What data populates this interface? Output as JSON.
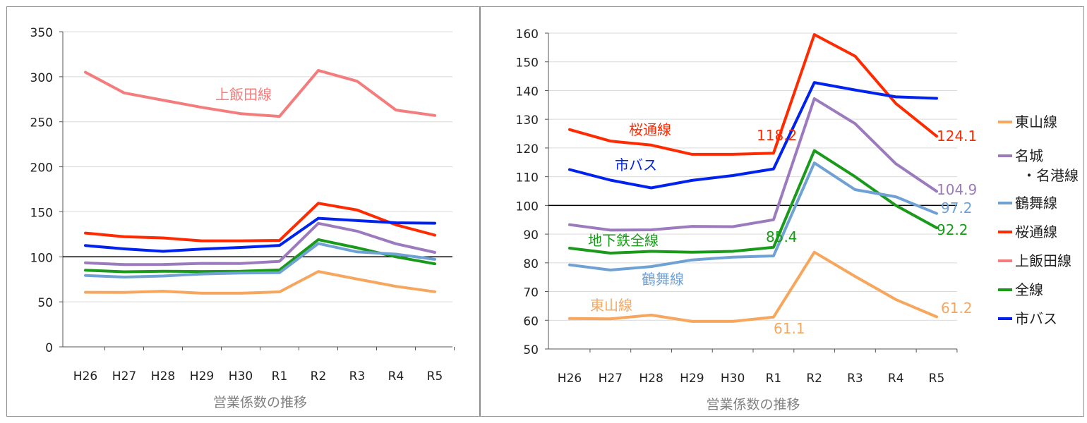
{
  "chart_data": [
    {
      "type": "line",
      "xlabel": "営業係数の推移",
      "ylabel": "",
      "categories": [
        "H26",
        "H27",
        "H28",
        "H29",
        "H30",
        "R1",
        "R2",
        "R3",
        "R4",
        "R5"
      ],
      "ylim": [
        0,
        350
      ],
      "yticks": [
        0,
        50,
        100,
        150,
        200,
        250,
        300,
        350
      ],
      "grid": true,
      "reference_line": 100,
      "legend": "none",
      "series": [
        {
          "name": "上飯田線",
          "color": "#f47c7c",
          "values": [
            305,
            282,
            274,
            266,
            259,
            256,
            307,
            295,
            263,
            257
          ]
        },
        {
          "name": "桜通線",
          "color": "#ff2a00",
          "values": [
            126.4,
            122.4,
            121.0,
            117.8,
            117.8,
            118.2,
            159.5,
            152.0,
            135.5,
            124.1
          ]
        },
        {
          "name": "市バス",
          "color": "#0022ee",
          "values": [
            112.5,
            108.8,
            106.1,
            108.7,
            110.4,
            112.7,
            142.8,
            140.2,
            137.8,
            137.3
          ]
        },
        {
          "name": "名城・名港線",
          "color": "#9b7bbe",
          "values": [
            93.3,
            91.4,
            91.5,
            92.7,
            92.6,
            95.0,
            137.2,
            128.5,
            114.5,
            104.9
          ]
        },
        {
          "name": "全線",
          "color": "#1a9a1a",
          "values": [
            85.1,
            83.4,
            84.0,
            83.7,
            84.0,
            85.4,
            119.1,
            110.0,
            100.0,
            92.2
          ]
        },
        {
          "name": "鶴舞線",
          "color": "#6fa1d4",
          "values": [
            79.3,
            77.5,
            78.7,
            81.0,
            82.0,
            82.4,
            114.8,
            105.5,
            103.0,
            97.2
          ]
        },
        {
          "name": "東山線",
          "color": "#f7a65e",
          "values": [
            60.6,
            60.5,
            61.8,
            59.6,
            59.6,
            61.1,
            83.7,
            75.3,
            67.2,
            61.2
          ]
        }
      ],
      "annotations": [
        {
          "text": "上飯田線",
          "series": "上飯田線"
        }
      ]
    },
    {
      "type": "line",
      "xlabel": "営業係数の推移",
      "ylabel": "",
      "categories": [
        "H26",
        "H27",
        "H28",
        "H29",
        "H30",
        "R1",
        "R2",
        "R3",
        "R4",
        "R5"
      ],
      "ylim": [
        50,
        160
      ],
      "yticks": [
        50,
        60,
        70,
        80,
        90,
        100,
        110,
        120,
        130,
        140,
        150,
        160
      ],
      "grid": true,
      "reference_line": 100,
      "legend": "right",
      "legend_entries": [
        {
          "label": "東山線",
          "color": "#f7a65e"
        },
        {
          "label": "名城",
          "label2": "・名港線",
          "color": "#9b7bbe"
        },
        {
          "label": "鶴舞線",
          "color": "#6fa1d4"
        },
        {
          "label": "桜通線",
          "color": "#ff2a00"
        },
        {
          "label": "上飯田線",
          "color": "#f47c7c"
        },
        {
          "label": "全線",
          "color": "#1a9a1a"
        },
        {
          "label": "市バス",
          "color": "#0022ee"
        }
      ],
      "series": [
        {
          "name": "桜通線",
          "color": "#ff2a00",
          "values": [
            126.4,
            122.4,
            121.0,
            117.8,
            117.8,
            118.2,
            159.5,
            152.0,
            135.5,
            124.1
          ]
        },
        {
          "name": "市バス",
          "color": "#0022ee",
          "values": [
            112.5,
            108.8,
            106.1,
            108.7,
            110.4,
            112.7,
            142.8,
            140.2,
            137.8,
            137.3
          ]
        },
        {
          "name": "名城・名港線",
          "color": "#9b7bbe",
          "values": [
            93.3,
            91.4,
            91.5,
            92.7,
            92.6,
            95.0,
            137.2,
            128.5,
            114.5,
            104.9
          ]
        },
        {
          "name": "全線",
          "color": "#1a9a1a",
          "values": [
            85.1,
            83.4,
            84.0,
            83.7,
            84.0,
            85.4,
            119.1,
            110.0,
            100.0,
            92.2
          ]
        },
        {
          "name": "鶴舞線",
          "color": "#6fa1d4",
          "values": [
            79.3,
            77.5,
            78.7,
            81.0,
            82.0,
            82.4,
            114.8,
            105.5,
            103.0,
            97.2
          ]
        },
        {
          "name": "東山線",
          "color": "#f7a65e",
          "values": [
            60.6,
            60.5,
            61.8,
            59.6,
            59.6,
            61.1,
            83.7,
            75.3,
            67.2,
            61.2
          ]
        }
      ],
      "annotations": [
        {
          "text": "桜通線",
          "series": "桜通線"
        },
        {
          "text": "市バス",
          "series": "市バス"
        },
        {
          "text": "地下鉄全線",
          "series": "全線"
        },
        {
          "text": "鶴舞線",
          "series": "鶴舞線"
        },
        {
          "text": "東山線",
          "series": "東山線"
        },
        {
          "text": "118.2",
          "series": "桜通線"
        },
        {
          "text": "85.4",
          "series": "全線"
        },
        {
          "text": "61.1",
          "series": "東山線"
        },
        {
          "text": "124.1",
          "series": "桜通線"
        },
        {
          "text": "104.9",
          "series": "名城・名港線"
        },
        {
          "text": "97.2",
          "series": "鶴舞線"
        },
        {
          "text": "92.2",
          "series": "全線"
        },
        {
          "text": "61.2",
          "series": "東山線"
        }
      ]
    }
  ]
}
